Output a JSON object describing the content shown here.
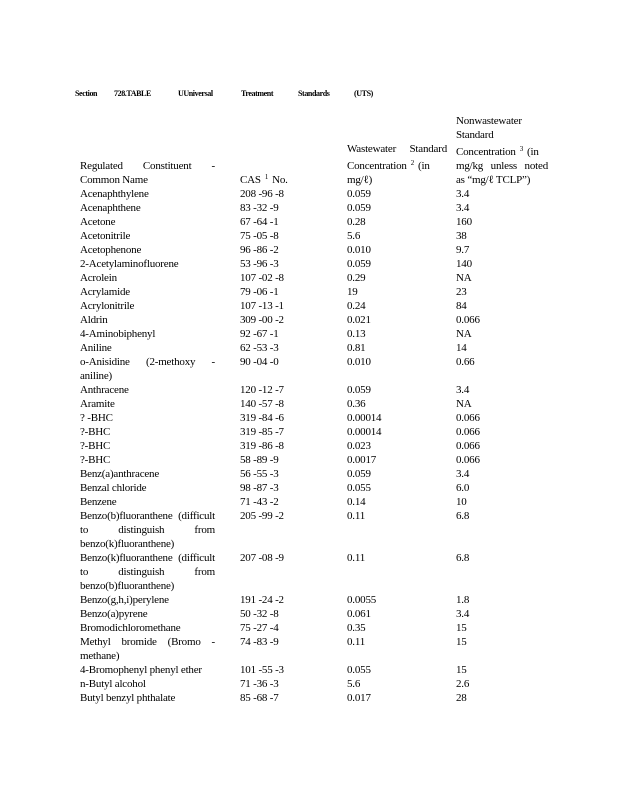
{
  "title": {
    "section": "Section",
    "table": "728.TABLE",
    "universal": "UUniversal",
    "treatment": "Treatment",
    "standards": "Standards",
    "uts": "(UTS)"
  },
  "headers": {
    "name": "Regulated Constituent - Common Name",
    "cas_pre": "CAS",
    "cas_sup": "1",
    "cas_post": "No.",
    "ww_pre": "Wastewater Standard Concentration",
    "ww_sup": "2",
    "ww_post": "(in mg/ℓ)",
    "nww_pre": "Nonwastewater Standard Concentration",
    "nww_sup": "3",
    "nww_post": "(in mg/kg unless noted as “mg/ℓ TCLP”)"
  },
  "rows": [
    {
      "name": "Acenaphthylene",
      "cas": "208 -96 -8",
      "ww": "0.059",
      "nww": "3.4"
    },
    {
      "name": "Acenaphthene",
      "cas": "83 -32 -9",
      "ww": "0.059",
      "nww": "3.4"
    },
    {
      "name": "Acetone",
      "cas": "67 -64 -1",
      "ww": "0.28",
      "nww": "160"
    },
    {
      "name": "Acetonitrile",
      "cas": "75 -05 -8",
      "ww": "5.6",
      "nww": "38"
    },
    {
      "name": "Acetophenone",
      "cas": "96 -86 -2",
      "ww": "0.010",
      "nww": "9.7"
    },
    {
      "name": "2-Acetylaminofluorene",
      "cas": "53 -96 -3",
      "ww": "0.059",
      "nww": "140"
    },
    {
      "name": "Acrolein",
      "cas": "107 -02 -8",
      "ww": "0.29",
      "nww": "NA"
    },
    {
      "name": "Acrylamide",
      "cas": "79 -06 -1",
      "ww": "19",
      "nww": "23"
    },
    {
      "name": "Acrylonitrile",
      "cas": "107 -13 -1",
      "ww": "0.24",
      "nww": "84"
    },
    {
      "name": "Aldrin",
      "cas": "309 -00 -2",
      "ww": "0.021",
      "nww": "0.066"
    },
    {
      "name": "4-Aminobiphenyl",
      "cas": "92 -67 -1",
      "ww": "0.13",
      "nww": "NA"
    },
    {
      "name": "Aniline",
      "cas": "62 -53 -3",
      "ww": "0.81",
      "nww": "14"
    },
    {
      "name": "o-Anisidine (2-methoxy - aniline)",
      "cas": "90 -04 -0",
      "ww": "0.010",
      "nww": "0.66"
    },
    {
      "name": "Anthracene",
      "cas": "120 -12 -7",
      "ww": "0.059",
      "nww": "3.4"
    },
    {
      "name": "Aramite",
      "cas": "140 -57 -8",
      "ww": "0.36",
      "nww": "NA"
    },
    {
      "name": "? -BHC",
      "cas": "319 -84 -6",
      "ww": "0.00014",
      "nww": "0.066"
    },
    {
      "name": "?-BHC",
      "cas": "319 -85 -7",
      "ww": "0.00014",
      "nww": "0.066"
    },
    {
      "name": "?-BHC",
      "cas": "319 -86 -8",
      "ww": "0.023",
      "nww": "0.066"
    },
    {
      "name": "?-BHC",
      "cas": "58 -89 -9",
      "ww": "0.0017",
      "nww": "0.066"
    },
    {
      "name": "Benz(a)anthracene",
      "cas": "56 -55 -3",
      "ww": "0.059",
      "nww": "3.4"
    },
    {
      "name": "Benzal chloride",
      "cas": "98 -87 -3",
      "ww": "0.055",
      "nww": "6.0"
    },
    {
      "name": "Benzene",
      "cas": "71 -43 -2",
      "ww": "0.14",
      "nww": "10"
    },
    {
      "name": "Benzo(b)fluoranthene (difficult to distinguish from benzo(k)fluoranthene)",
      "cas": "205 -99 -2",
      "ww": "0.11",
      "nww": "6.8"
    },
    {
      "name": "Benzo(k)fluoranthene (difficult to distinguish from benzo(b)fluoranthene)",
      "cas": "207 -08 -9",
      "ww": "0.11",
      "nww": "6.8"
    },
    {
      "name": "Benzo(g,h,i)perylene",
      "cas": "191 -24 -2",
      "ww": "0.0055",
      "nww": "1.8"
    },
    {
      "name": "Benzo(a)pyrene",
      "cas": "50 -32 -8",
      "ww": "0.061",
      "nww": "3.4"
    },
    {
      "name": "Bromodichloromethane",
      "cas": "75 -27 -4",
      "ww": "0.35",
      "nww": "15"
    },
    {
      "name": "Methyl bromide (Bromo - methane)",
      "cas": "74 -83 -9",
      "ww": "0.11",
      "nww": "15"
    },
    {
      "name": "4-Bromophenyl phenyl ether",
      "cas": "101 -55 -3",
      "ww": "0.055",
      "nww": "15"
    },
    {
      "name": "n-Butyl alcohol",
      "cas": "71 -36 -3",
      "ww": "5.6",
      "nww": "2.6"
    },
    {
      "name": "Butyl benzyl phthalate",
      "cas": "85 -68 -7",
      "ww": "0.017",
      "nww": "28"
    }
  ]
}
